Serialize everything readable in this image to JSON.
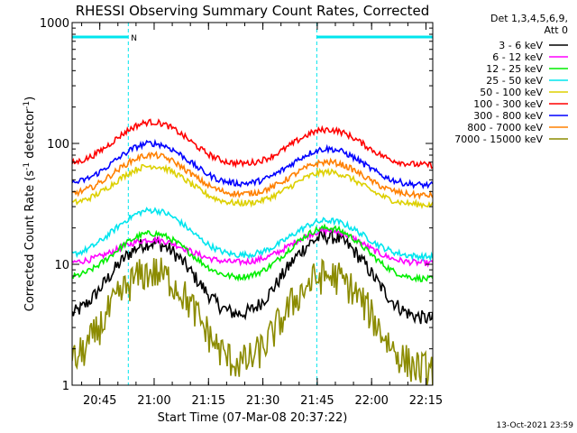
{
  "chart_data": {
    "type": "line",
    "title": "RHESSI Observing Summary Count Rates, Corrected",
    "xlabel": "Start Time (07-Mar-08 20:37:22)",
    "ylabel_main": "Corrected Count Rate (s",
    "ylabel_sup1": "-1",
    "ylabel_mid": " detector",
    "ylabel_sup2": "-1",
    "ylabel_end": ")",
    "xlim_minutes": [
      0,
      99.5
    ],
    "ylim": [
      1,
      1000
    ],
    "yscale": "log",
    "xticks": [
      {
        "label": "20:45",
        "minute": 7.63
      },
      {
        "label": "21:00",
        "minute": 22.63
      },
      {
        "label": "21:15",
        "minute": 37.63
      },
      {
        "label": "21:30",
        "minute": 52.63
      },
      {
        "label": "21:45",
        "minute": 67.63
      },
      {
        "label": "22:00",
        "minute": 82.63
      },
      {
        "label": "22:15",
        "minute": 97.63
      }
    ],
    "yticks": [
      {
        "label": "1",
        "value": 1
      },
      {
        "label": "10",
        "value": 10
      },
      {
        "label": "100",
        "value": 100
      },
      {
        "label": "1000",
        "value": 1000
      }
    ],
    "legend_header": [
      "Det 1,3,4,5,6,9,",
      "Att 0"
    ],
    "legend_position": "top-right, outside plot",
    "background_color": "#ffffff",
    "axis_color": "#000000",
    "night_marker_color": "#00e5ee",
    "night_intervals_minutes": [
      [
        0,
        15.5
      ],
      [
        67.5,
        99.5
      ]
    ],
    "night_marker_label": "N",
    "peak_minutes": [
      22.0,
      70.5
    ],
    "series": [
      {
        "name": "3 - 6 keV",
        "color": "#000000",
        "base": 3.5,
        "peaks": [
          15,
          17
        ]
      },
      {
        "name": "6 - 12 keV",
        "color": "#ff00ff",
        "base": 10.2,
        "peaks": [
          16,
          19
        ]
      },
      {
        "name": "12 - 25 keV",
        "color": "#00ee00",
        "base": 7.5,
        "peaks": [
          18,
          20
        ]
      },
      {
        "name": "25 - 50 keV",
        "color": "#00e5ee",
        "base": 11.5,
        "peaks": [
          28,
          23
        ]
      },
      {
        "name": "50 - 100 keV",
        "color": "#ddd000",
        "base": 31,
        "peaks": [
          65,
          58
        ]
      },
      {
        "name": "100 - 300 keV",
        "color": "#ff0000",
        "base": 66,
        "peaks": [
          150,
          130
        ]
      },
      {
        "name": "300 - 800 keV",
        "color": "#0000ff",
        "base": 45,
        "peaks": [
          100,
          90
        ]
      },
      {
        "name": "800 - 7000 keV",
        "color": "#ff8000",
        "base": 37,
        "peaks": [
          80,
          70
        ]
      },
      {
        "name": "7000 - 15000 keV",
        "color": "#8b8b00",
        "base": 1.3,
        "peaks": [
          8.5,
          8
        ]
      }
    ],
    "footer_timestamp": "13-Oct-2021 23:59"
  }
}
